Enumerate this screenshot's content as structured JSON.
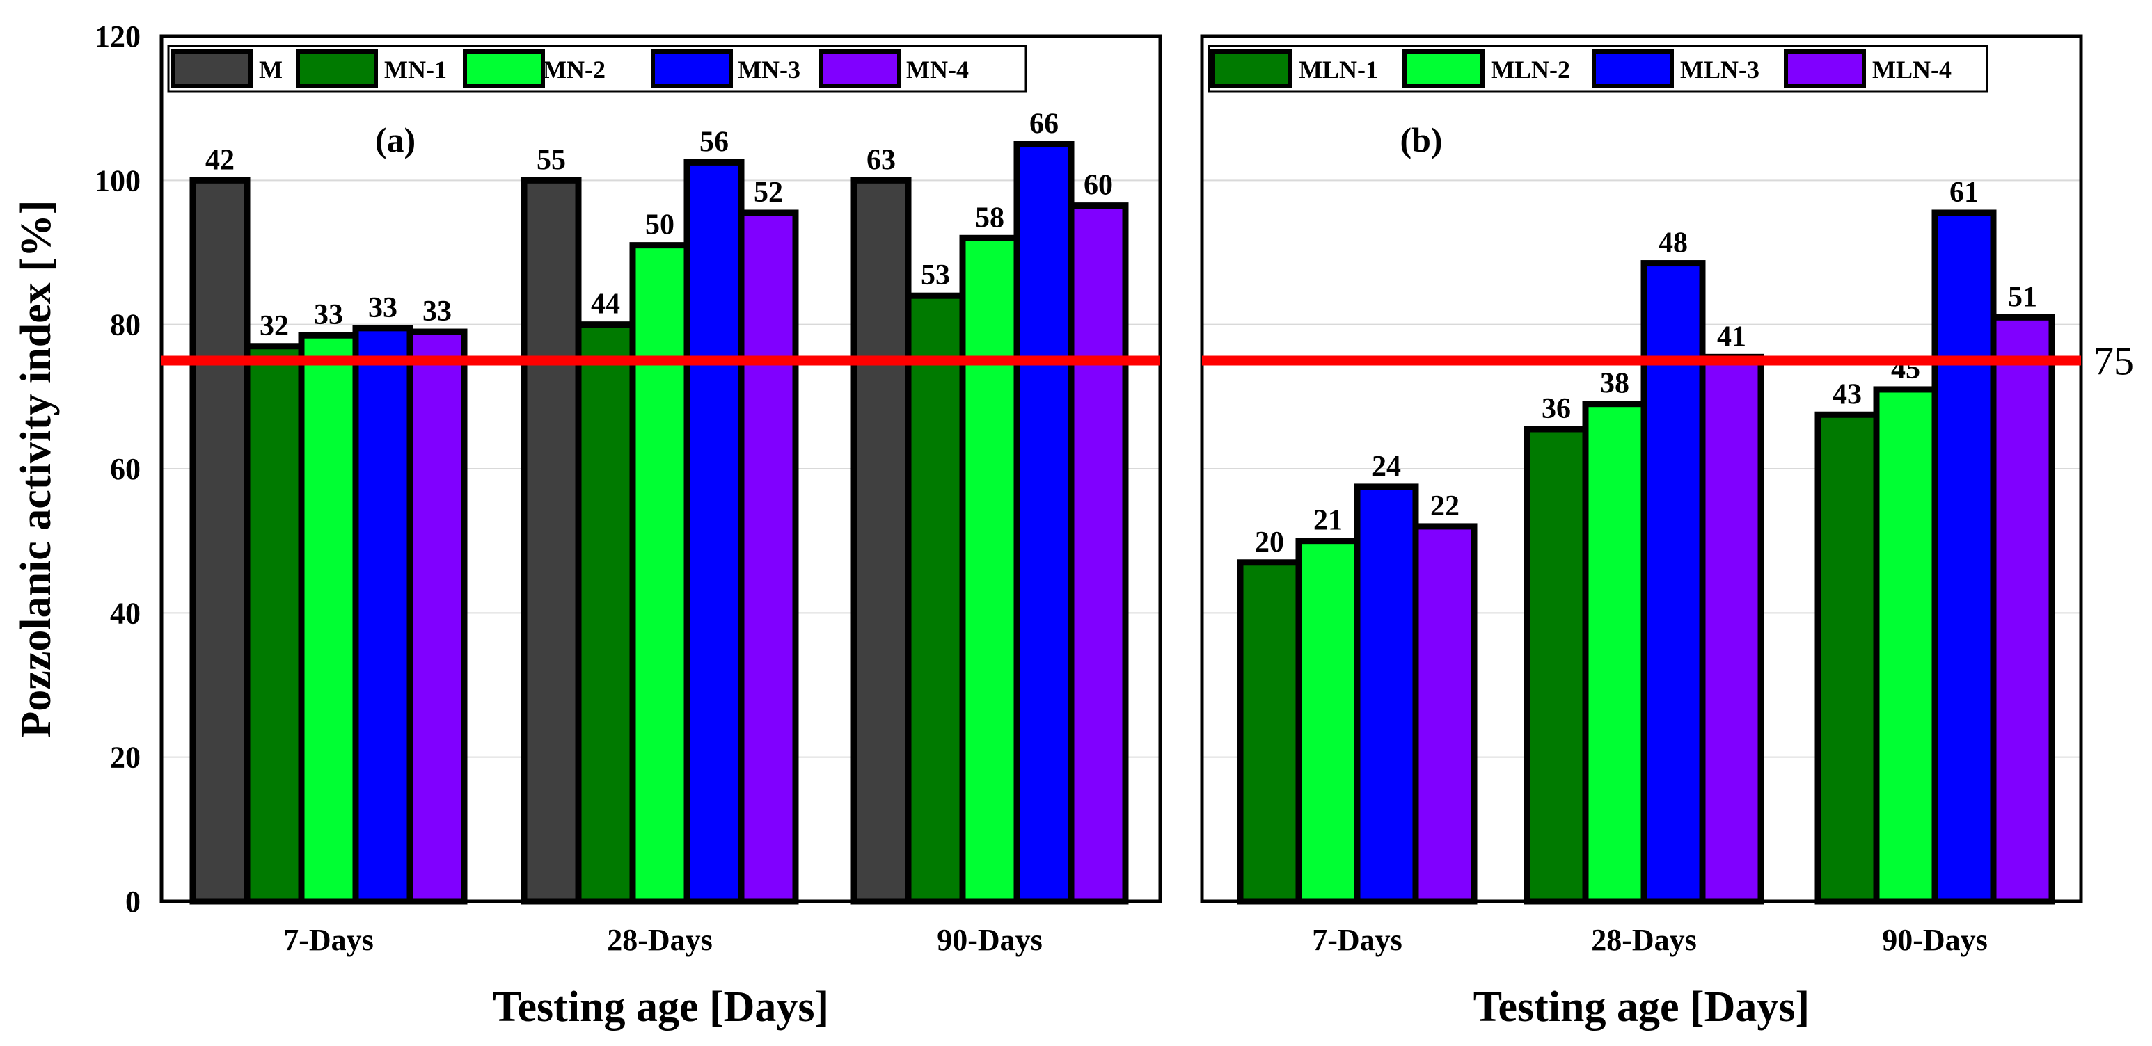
{
  "chart_data": [
    {
      "type": "bar",
      "panel_label": "(a)",
      "categories": [
        "7-Days",
        "28-Days",
        "90-Days"
      ],
      "series": [
        {
          "name": "M",
          "color": "#404040",
          "heights": [
            100,
            100,
            100
          ],
          "labels": [
            "42",
            "55",
            "63"
          ]
        },
        {
          "name": "MN-1",
          "color": "#007a00",
          "heights": [
            77,
            80,
            84
          ],
          "labels": [
            "32",
            "44",
            "53"
          ]
        },
        {
          "name": "MN-2",
          "color": "#00ff33",
          "heights": [
            78.5,
            91,
            92
          ],
          "labels": [
            "33",
            "50",
            "58"
          ]
        },
        {
          "name": "MN-3",
          "color": "#0000ff",
          "heights": [
            79.5,
            102.5,
            105
          ],
          "labels": [
            "33",
            "56",
            "66"
          ]
        },
        {
          "name": "MN-4",
          "color": "#8000ff",
          "heights": [
            79,
            95.5,
            96.5
          ],
          "labels": [
            "33",
            "52",
            "60"
          ]
        }
      ],
      "ylabel": "Pozzolanic activity index [%]",
      "xlabel": "Testing age [Days]",
      "ylim": [
        0,
        120
      ],
      "yticks": [
        "0",
        "20",
        "40",
        "60",
        "80",
        "100",
        "120"
      ],
      "reference_line": {
        "value": 75,
        "color": "#ff0000"
      }
    },
    {
      "type": "bar",
      "panel_label": "(b)",
      "categories": [
        "7-Days",
        "28-Days",
        "90-Days"
      ],
      "series": [
        {
          "name": "MLN-1",
          "color": "#007a00",
          "heights": [
            47,
            65.5,
            67.5
          ],
          "labels": [
            "20",
            "36",
            "43"
          ]
        },
        {
          "name": "MLN-2",
          "color": "#00ff33",
          "heights": [
            50,
            69,
            71
          ],
          "labels": [
            "21",
            "38",
            "45"
          ]
        },
        {
          "name": "MLN-3",
          "color": "#0000ff",
          "heights": [
            57.5,
            88.5,
            95.5
          ],
          "labels": [
            "24",
            "48",
            "61"
          ]
        },
        {
          "name": "MLN-4",
          "color": "#8000ff",
          "heights": [
            52,
            75.5,
            81
          ],
          "labels": [
            "22",
            "41",
            "51"
          ]
        }
      ],
      "xlabel": "Testing age [Days]",
      "ylim": [
        0,
        120
      ],
      "reference_line": {
        "value": 75,
        "color": "#ff0000",
        "label": "75"
      }
    }
  ]
}
